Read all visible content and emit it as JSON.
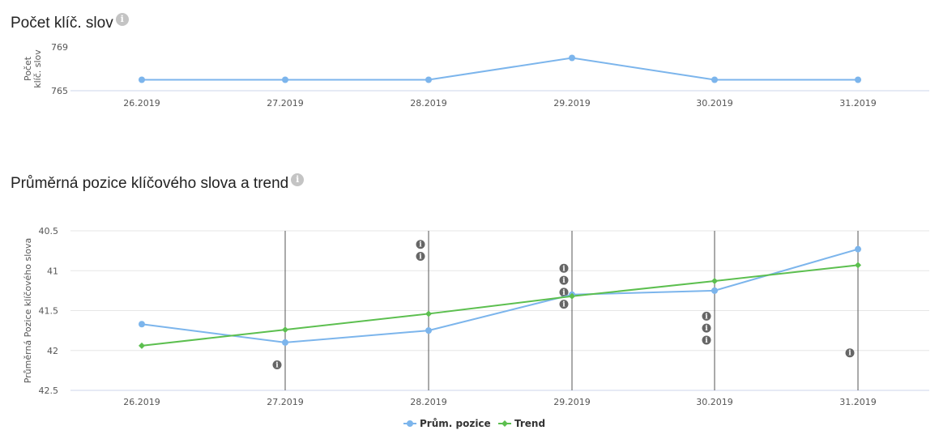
{
  "chart_data": [
    {
      "type": "line",
      "title": "Počet klíč. slov",
      "ylabel": "Počet klíč. slov",
      "categories": [
        "26.2019",
        "27.2019",
        "28.2019",
        "29.2019",
        "30.2019",
        "31.2019"
      ],
      "series": [
        {
          "values": [
            766,
            766,
            766,
            768,
            766,
            766
          ],
          "color": "#7cb5ec"
        }
      ],
      "yticks": [
        "769",
        "765"
      ],
      "ylim": [
        765,
        769
      ],
      "grid": false,
      "info_icon": "info-icon"
    },
    {
      "type": "line",
      "title": "Průměrná pozice klíčového slova a trend",
      "ylabel": "Průměrná Pozice klíčového slova",
      "y_reversed": true,
      "categories": [
        "26.2019",
        "27.2019",
        "28.2019",
        "29.2019",
        "30.2019",
        "31.2019"
      ],
      "series": [
        {
          "name": "Prům. pozice",
          "values": [
            41.67,
            41.9,
            41.75,
            41.3,
            41.25,
            40.73
          ],
          "color": "#7cb5ec",
          "marker": "circle"
        },
        {
          "name": "Trend",
          "values": [
            41.94,
            41.74,
            41.54,
            41.32,
            41.13,
            40.93
          ],
          "color": "#5cbf4f",
          "marker": "diamond"
        }
      ],
      "yticks": [
        "40.5",
        "41",
        "41.5",
        "42",
        "42.5"
      ],
      "ylim": [
        40.5,
        42.5
      ],
      "grid": true,
      "legend": "bottom-center",
      "event_lines": [
        "27.2019",
        "28.2019",
        "29.2019",
        "30.2019",
        "31.2019"
      ],
      "annotations": [
        {
          "x": "27.2019",
          "y": 42.18,
          "icon": "info-icon"
        },
        {
          "x": "28.2019",
          "y": 40.67,
          "icon": "info-icon"
        },
        {
          "x": "28.2019",
          "y": 40.82,
          "icon": "info-icon"
        },
        {
          "x": "29.2019",
          "y": 40.97,
          "icon": "info-icon"
        },
        {
          "x": "29.2019",
          "y": 41.12,
          "icon": "info-icon"
        },
        {
          "x": "29.2019",
          "y": 41.27,
          "icon": "info-icon"
        },
        {
          "x": "29.2019",
          "y": 41.42,
          "icon": "info-icon"
        },
        {
          "x": "30.2019",
          "y": 41.57,
          "icon": "info-icon"
        },
        {
          "x": "30.2019",
          "y": 41.72,
          "icon": "info-icon"
        },
        {
          "x": "30.2019",
          "y": 41.87,
          "icon": "info-icon"
        },
        {
          "x": "31.2019",
          "y": 42.03,
          "icon": "info-icon"
        }
      ],
      "info_icon": "info-icon"
    }
  ]
}
